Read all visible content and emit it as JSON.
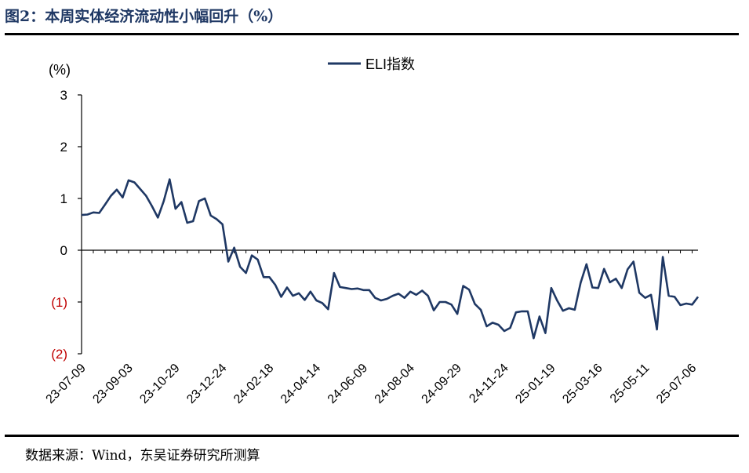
{
  "figure": {
    "title": "图2：本周实体经济流动性小幅回升（%）",
    "source": "数据来源：Wind，东吴证券研究所测算"
  },
  "colors": {
    "line": "#1f3864",
    "negative_tick": "#c00000",
    "axis": "#000000"
  },
  "chart_data": {
    "type": "line",
    "unit_label": "(%)",
    "ylim": [
      -2,
      3
    ],
    "yticks": [
      {
        "value": 3,
        "label": "3"
      },
      {
        "value": 2,
        "label": "2"
      },
      {
        "value": 1,
        "label": "1"
      },
      {
        "value": 0,
        "label": "0"
      },
      {
        "value": -1,
        "label": "(1)"
      },
      {
        "value": -2,
        "label": "(2)"
      }
    ],
    "xtick_labels": [
      "23-07-09",
      "23-09-03",
      "23-10-29",
      "23-12-24",
      "24-02-18",
      "24-04-14",
      "24-06-09",
      "24-08-04",
      "24-09-29",
      "24-11-24",
      "25-01-19",
      "25-03-16",
      "25-05-11",
      "25-07-06"
    ],
    "xtick_index": [
      0,
      8,
      16,
      24,
      32,
      40,
      48,
      56,
      64,
      72,
      80,
      88,
      96,
      104
    ],
    "grid": false,
    "legend": "top-center",
    "series": [
      {
        "name": "ELI指数",
        "values": [
          0.68,
          0.69,
          0.73,
          0.72,
          0.88,
          1.05,
          1.17,
          1.02,
          1.35,
          1.31,
          1.18,
          1.05,
          0.85,
          0.63,
          0.95,
          1.37,
          0.8,
          0.93,
          0.53,
          0.56,
          0.95,
          1.0,
          0.67,
          0.6,
          0.5,
          -0.22,
          0.05,
          -0.32,
          -0.44,
          -0.1,
          -0.18,
          -0.52,
          -0.52,
          -0.67,
          -0.9,
          -0.72,
          -0.88,
          -0.83,
          -0.96,
          -0.8,
          -0.97,
          -1.02,
          -1.14,
          -0.44,
          -0.71,
          -0.73,
          -0.75,
          -0.74,
          -0.77,
          -0.77,
          -0.92,
          -0.97,
          -0.94,
          -0.88,
          -0.84,
          -0.92,
          -0.8,
          -0.86,
          -0.78,
          -0.88,
          -1.16,
          -1.0,
          -1.0,
          -1.05,
          -1.23,
          -0.69,
          -0.76,
          -1.04,
          -1.15,
          -1.47,
          -1.4,
          -1.44,
          -1.56,
          -1.5,
          -1.2,
          -1.18,
          -1.18,
          -1.7,
          -1.28,
          -1.6,
          -0.73,
          -0.97,
          -1.17,
          -1.12,
          -1.15,
          -0.63,
          -0.27,
          -0.72,
          -0.73,
          -0.36,
          -0.62,
          -0.55,
          -0.73,
          -0.37,
          -0.22,
          -0.82,
          -0.92,
          -0.86,
          -1.53,
          -0.13,
          -0.88,
          -0.9,
          -1.06,
          -1.03,
          -1.05,
          -0.9
        ]
      }
    ]
  }
}
